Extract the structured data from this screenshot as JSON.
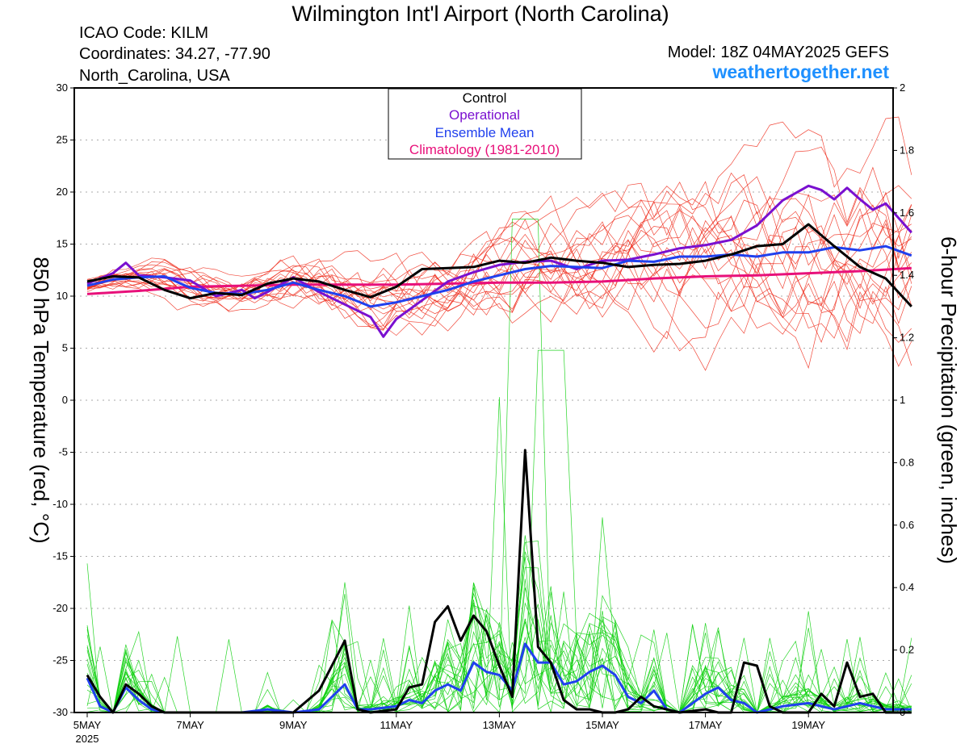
{
  "header": {
    "title": "Wilmington Int'l Airport (North Carolina)",
    "icao": "ICAO Code: KILM",
    "coordinates": "Coordinates: 34.27, -77.90",
    "location": "North_Carolina, USA",
    "model": "Model: 18Z 04MAY2025 GEFS",
    "site": "weathertogether.net"
  },
  "colors": {
    "control": "#000000",
    "operational": "#7a10d0",
    "ensemble_mean": "#2040ee",
    "climatology": "#e8107a",
    "members_temp": "#ee2a1a",
    "members_precip": "#10d010",
    "site_link": "#1e90ff",
    "grid": "#aaaaaa"
  },
  "legend": {
    "items": [
      {
        "label": "Control",
        "color": "#000000"
      },
      {
        "label": "Operational",
        "color": "#7a10d0"
      },
      {
        "label": "Ensemble Mean",
        "color": "#2040ee"
      },
      {
        "label": "Climatology (1981-2010)",
        "color": "#e8107a"
      }
    ]
  },
  "chart_data": {
    "type": "line",
    "xlabel": "",
    "ylabel": "850 hPa Temperature (red, °C)",
    "y2label": "6-hour Precipitation (green, inches)",
    "x_range": [
      0,
      16
    ],
    "x_ticks": [
      {
        "day": 0,
        "label": "5MAY",
        "sub": "2025"
      },
      {
        "day": 2,
        "label": "7MAY",
        "sub": ""
      },
      {
        "day": 4,
        "label": "9MAY",
        "sub": ""
      },
      {
        "day": 6,
        "label": "11MAY",
        "sub": ""
      },
      {
        "day": 8,
        "label": "13MAY",
        "sub": ""
      },
      {
        "day": 10,
        "label": "15MAY",
        "sub": ""
      },
      {
        "day": 12,
        "label": "17MAY",
        "sub": ""
      },
      {
        "day": 14,
        "label": "19MAY",
        "sub": ""
      }
    ],
    "ylim": [
      -30,
      30
    ],
    "yticks": [
      -30,
      -25,
      -20,
      -15,
      -10,
      -5,
      0,
      5,
      10,
      15,
      20,
      25,
      30
    ],
    "y2lim": [
      0,
      2
    ],
    "y2ticks": [
      0,
      0.2,
      0.4,
      0.6,
      0.8,
      1,
      1.2,
      1.4,
      1.6,
      1.8,
      2
    ],
    "grid": true,
    "legend_position": "top-center",
    "series": [
      {
        "name": "Control",
        "axis": "temp",
        "x": [
          0,
          0.5,
          1,
          1.5,
          2,
          2.5,
          3,
          3.5,
          4,
          4.5,
          5,
          5.5,
          6,
          6.5,
          7,
          7.5,
          8,
          8.5,
          9,
          9.5,
          10,
          10.5,
          11,
          11.5,
          12,
          12.5,
          13,
          13.5,
          14,
          14.5,
          15,
          15.5,
          16
        ],
        "values": [
          11.4,
          11.9,
          11.8,
          10.6,
          9.8,
          10.3,
          10.1,
          11.2,
          11.7,
          11.4,
          10.6,
          9.9,
          10.9,
          12.6,
          12.7,
          12.8,
          13.4,
          13.2,
          13.7,
          13.4,
          13.2,
          12.8,
          13.0,
          13.1,
          13.4,
          14.0,
          14.8,
          15.0,
          16.9,
          14.8,
          12.8,
          11.7,
          9.0
        ]
      },
      {
        "name": "Operational",
        "axis": "temp",
        "x": [
          0,
          0.5,
          0.75,
          1,
          1.5,
          2,
          2.5,
          3,
          3.25,
          3.5,
          4,
          4.5,
          5,
          5.5,
          5.75,
          6,
          6.5,
          7,
          7.5,
          8,
          8.5,
          9,
          9.5,
          10,
          10.5,
          11,
          11.5,
          12,
          12.5,
          13,
          13.5,
          14,
          14.25,
          14.5,
          14.75,
          15,
          15.25,
          15.5,
          16
        ],
        "values": [
          11.2,
          12.2,
          13.2,
          12.0,
          11.8,
          11.5,
          10.0,
          10.6,
          9.8,
          10.4,
          11.8,
          10.4,
          9.2,
          8.0,
          6.1,
          7.8,
          9.6,
          11.4,
          12.3,
          13.0,
          13.3,
          13.4,
          12.6,
          13.4,
          13.5,
          14.0,
          14.6,
          14.9,
          15.4,
          16.8,
          19.2,
          20.6,
          20.2,
          19.3,
          20.4,
          19.3,
          18.3,
          18.9,
          16.1
        ]
      },
      {
        "name": "Ensemble Mean",
        "axis": "temp",
        "x": [
          0,
          0.5,
          1,
          1.5,
          2,
          2.5,
          3,
          3.5,
          4,
          4.5,
          5,
          5.5,
          6,
          6.5,
          7,
          7.5,
          8,
          8.5,
          9,
          9.5,
          10,
          10.5,
          11,
          11.5,
          12,
          12.5,
          13,
          13.5,
          14,
          14.5,
          15,
          15.5,
          16
        ],
        "values": [
          11.0,
          11.6,
          11.8,
          11.9,
          10.8,
          10.3,
          10.2,
          10.6,
          11.3,
          10.6,
          10.0,
          9.0,
          9.4,
          10.0,
          10.6,
          11.4,
          12.0,
          12.6,
          12.9,
          12.8,
          12.7,
          13.4,
          13.3,
          13.8,
          13.8,
          14.0,
          13.8,
          14.2,
          14.2,
          14.7,
          14.4,
          14.8,
          13.9
        ]
      },
      {
        "name": "Climatology (1981-2010)",
        "axis": "temp",
        "x": [
          0,
          1,
          2,
          3,
          4,
          5,
          6,
          7,
          8,
          9,
          10,
          11,
          12,
          13,
          14,
          15,
          16
        ],
        "values": [
          10.2,
          10.5,
          10.9,
          11.0,
          11.1,
          11.1,
          11.1,
          11.2,
          11.3,
          11.3,
          11.4,
          11.7,
          11.9,
          12.0,
          12.2,
          12.4,
          12.7
        ]
      },
      {
        "name": "Control",
        "axis": "precip",
        "x": [
          0,
          0.25,
          0.5,
          0.75,
          1,
          1.25,
          1.5,
          2,
          3,
          4,
          4.5,
          5,
          5.25,
          5.5,
          6,
          6.25,
          6.5,
          6.75,
          7,
          7.25,
          7.5,
          7.75,
          8,
          8.25,
          8.5,
          8.75,
          9,
          9.25,
          9.5,
          9.75,
          10,
          10.25,
          10.5,
          10.75,
          11,
          11.5,
          12,
          12.25,
          12.5,
          12.75,
          13,
          13.25,
          13.5,
          14,
          14.25,
          14.5,
          14.75,
          15,
          15.25,
          15.5,
          16
        ],
        "values": [
          0.12,
          0.05,
          0,
          0.09,
          0.06,
          0.02,
          0,
          0,
          0,
          0,
          0.07,
          0.23,
          0.01,
          0,
          0.01,
          0.08,
          0.09,
          0.29,
          0.34,
          0.23,
          0.31,
          0.26,
          0.15,
          0.05,
          0.84,
          0.21,
          0.16,
          0.04,
          0.01,
          0.01,
          0.0,
          0.0,
          0.01,
          0.05,
          0.02,
          0.0,
          0.01,
          0.0,
          0.0,
          0.16,
          0.15,
          0.02,
          0.0,
          0.0,
          0.06,
          0.02,
          0.16,
          0.05,
          0.06,
          0.0,
          0.0
        ]
      },
      {
        "name": "Ensemble Mean",
        "axis": "precip",
        "x": [
          0,
          0.25,
          0.5,
          0.75,
          1,
          1.25,
          1.5,
          2,
          3,
          3.5,
          4,
          4.5,
          5,
          5.25,
          5.5,
          6,
          6.25,
          6.5,
          6.75,
          7,
          7.25,
          7.5,
          7.75,
          8,
          8.25,
          8.5,
          8.75,
          9,
          9.25,
          9.5,
          9.75,
          10,
          10.25,
          10.5,
          10.75,
          11,
          11.25,
          11.5,
          12,
          12.25,
          12.5,
          12.75,
          13,
          13.5,
          14,
          14.5,
          15,
          15.5,
          16
        ],
        "values": [
          0.11,
          0.02,
          0,
          0.08,
          0.04,
          0.01,
          0,
          0,
          0,
          0.01,
          0,
          0.01,
          0.09,
          0.01,
          0.01,
          0.02,
          0.04,
          0.03,
          0.07,
          0.09,
          0.07,
          0.16,
          0.13,
          0.12,
          0.07,
          0.22,
          0.16,
          0.16,
          0.09,
          0.1,
          0.13,
          0.15,
          0.12,
          0.05,
          0.03,
          0.07,
          0.01,
          0.0,
          0.06,
          0.08,
          0.04,
          0.03,
          0.0,
          0.02,
          0.03,
          0.01,
          0.03,
          0.01,
          0.01
        ]
      }
    ]
  }
}
